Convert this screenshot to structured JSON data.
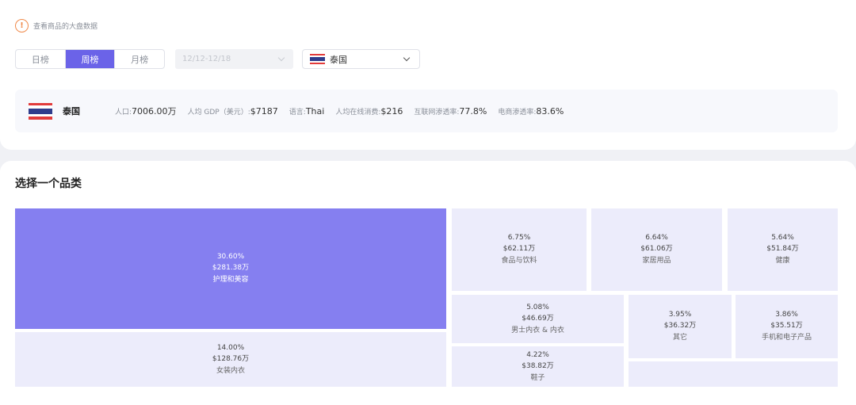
{
  "notice": {
    "icon": "warning-icon",
    "text": "查看商品的大盘数据"
  },
  "tabs": [
    {
      "label": "日榜",
      "active": false
    },
    {
      "label": "周榜",
      "active": true
    },
    {
      "label": "月榜",
      "active": false
    }
  ],
  "date_select": {
    "value": "12/12-12/18",
    "disabled": true
  },
  "country_select": {
    "value": "泰国",
    "flag_icon": "thailand-flag-icon"
  },
  "info_bar": {
    "country": "泰国",
    "stats": [
      {
        "label": "人口:",
        "value": "7006.00万"
      },
      {
        "label": "人均 GDP（美元）:",
        "value": "$7187"
      },
      {
        "label": "语言:",
        "value": "Thai"
      },
      {
        "label": "人均在线消费:",
        "value": "$216"
      },
      {
        "label": "互联网渗透率:",
        "value": "77.8%"
      },
      {
        "label": "电商渗透率:",
        "value": "83.6%"
      }
    ]
  },
  "section_title": "选择一个品类",
  "categories": [
    {
      "pct": "30.60%",
      "amount": "$281.38万",
      "name": "护理和美容"
    },
    {
      "pct": "14.00%",
      "amount": "$128.76万",
      "name": "女装内衣"
    },
    {
      "pct": "6.75%",
      "amount": "$62.11万",
      "name": "食品与饮料"
    },
    {
      "pct": "6.64%",
      "amount": "$61.06万",
      "name": "家居用品"
    },
    {
      "pct": "5.64%",
      "amount": "$51.84万",
      "name": "健康"
    },
    {
      "pct": "5.08%",
      "amount": "$46.69万",
      "name": "男士内衣 & 内衣"
    },
    {
      "pct": "4.22%",
      "amount": "$38.82万",
      "name": "鞋子"
    },
    {
      "pct": "3.95%",
      "amount": "$36.32万",
      "name": "其它"
    },
    {
      "pct": "3.86%",
      "amount": "$35.51万",
      "name": "手机和电子产品"
    }
  ],
  "colors": {
    "accent": "#6b63e8",
    "treemap_selected": "#857ff0",
    "treemap_tile": "#ececfb",
    "notice": "#f08a4b"
  }
}
